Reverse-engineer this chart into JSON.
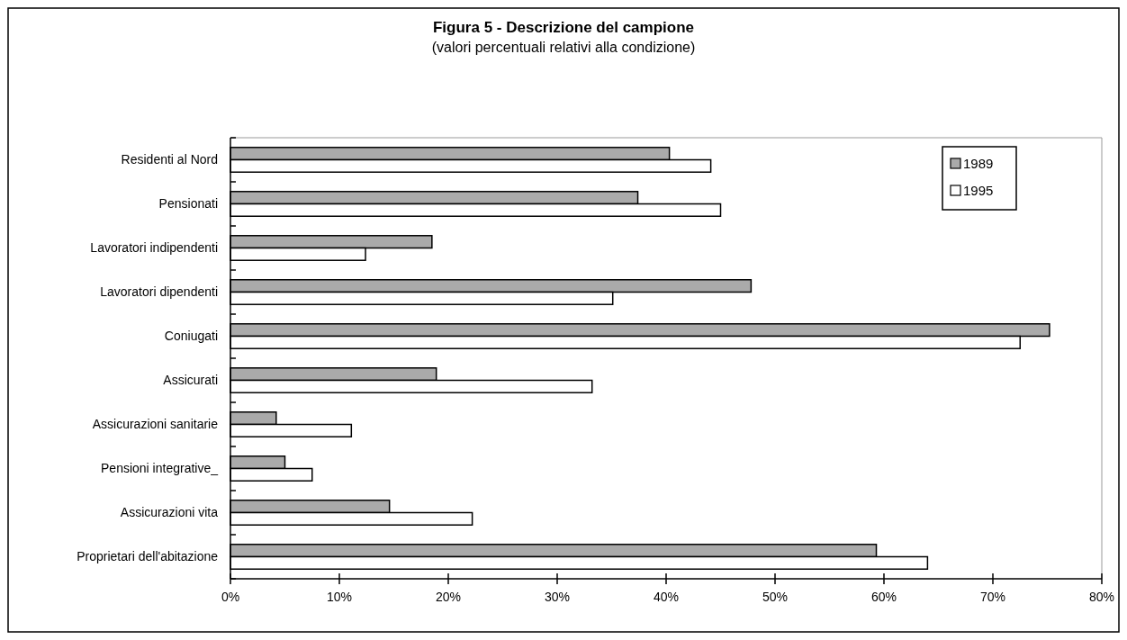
{
  "chart_data": {
    "type": "bar",
    "orientation": "horizontal",
    "title": "Figura 5 - Descrizione del campione",
    "subtitle": "(valori percentuali relativi alla condizione)",
    "categories": [
      "Residenti al Nord",
      "Pensionati",
      "Lavoratori indipendenti",
      "Lavoratori dipendenti",
      "Coniugati",
      "Assicurati",
      "Assicurazioni sanitarie",
      "Pensioni integrative_",
      "Assicurazioni vita",
      "Proprietari dell'abitazione"
    ],
    "series": [
      {
        "name": "1989",
        "color": "#aaaaaa",
        "values": [
          40.3,
          37.4,
          18.5,
          47.8,
          75.2,
          18.9,
          4.2,
          5.0,
          14.6,
          59.3
        ]
      },
      {
        "name": "1995",
        "color": "#ffffff",
        "values": [
          44.1,
          45.0,
          12.4,
          35.1,
          72.5,
          33.2,
          11.1,
          7.5,
          22.2,
          64.0
        ]
      }
    ],
    "xlim": [
      0,
      80
    ],
    "xticks": [
      {
        "value": 0,
        "label": "0%"
      },
      {
        "value": 10,
        "label": "10%"
      },
      {
        "value": 20,
        "label": "20%"
      },
      {
        "value": 30,
        "label": "30%"
      },
      {
        "value": 40,
        "label": "40%"
      },
      {
        "value": 50,
        "label": "50%"
      },
      {
        "value": 60,
        "label": "60%"
      },
      {
        "value": 70,
        "label": "70%"
      },
      {
        "value": 80,
        "label": "80%"
      }
    ],
    "grid": false,
    "legend": "top right"
  }
}
